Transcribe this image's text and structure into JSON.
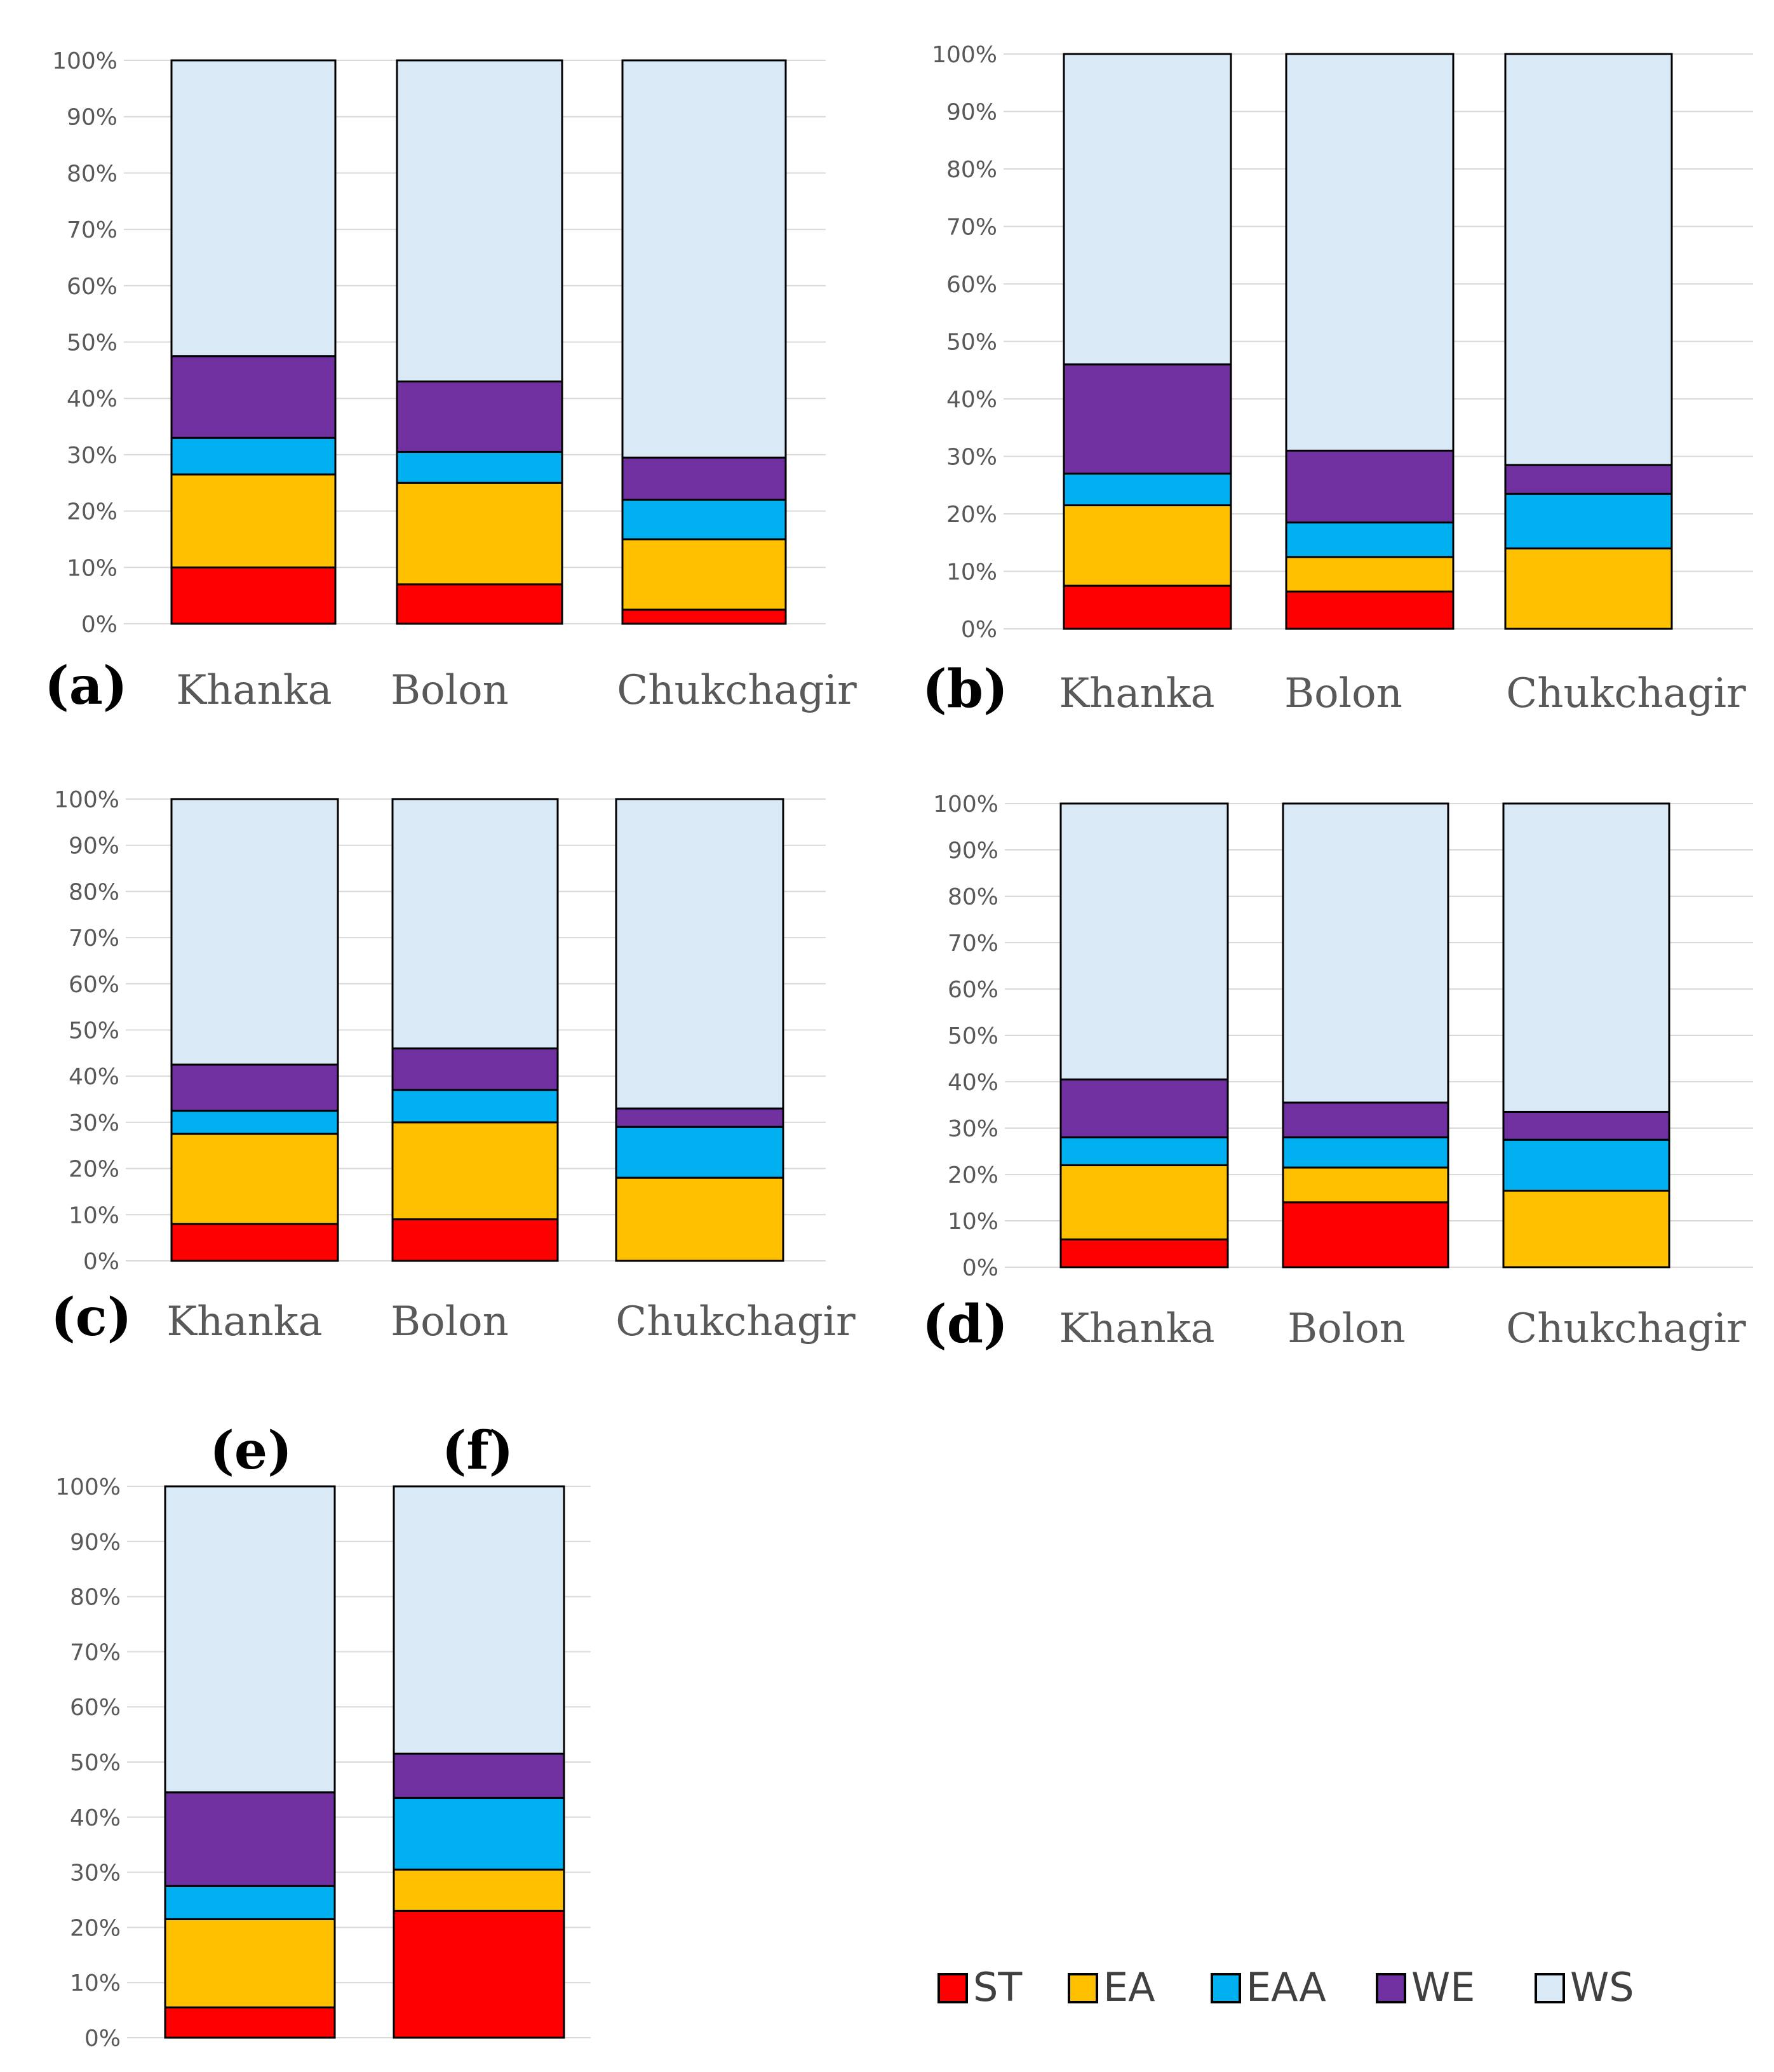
{
  "colors": {
    "ST": "#FF0000",
    "EA": "#FFC000",
    "EAA": "#00B0F0",
    "WE": "#7030A0",
    "WS": "#DAE9F6",
    "stroke": "#000000",
    "grid": "#D9D9D9"
  },
  "legend": [
    {
      "key": "ST",
      "label": "ST"
    },
    {
      "key": "EA",
      "label": "EA"
    },
    {
      "key": "EAA",
      "label": "EAA"
    },
    {
      "key": "WE",
      "label": "WE"
    },
    {
      "key": "WS",
      "label": "WS"
    }
  ],
  "chart_data": [
    {
      "type": "bar",
      "stacked": true,
      "panel": "(a)",
      "categories": [
        "Khanka",
        "Bolon",
        "Chukchagir"
      ],
      "yticks": [
        "0%",
        "10%",
        "20%",
        "30%",
        "40%",
        "50%",
        "60%",
        "70%",
        "80%",
        "90%",
        "100%"
      ],
      "ylim": [
        0,
        100
      ],
      "series": [
        {
          "name": "ST",
          "values": [
            10,
            7,
            2.5
          ]
        },
        {
          "name": "EA",
          "values": [
            16.5,
            18,
            12.5
          ]
        },
        {
          "name": "EAA",
          "values": [
            6.5,
            5.5,
            7
          ]
        },
        {
          "name": "WE",
          "values": [
            14.5,
            12.5,
            7.5
          ]
        },
        {
          "name": "WS",
          "values": [
            52.5,
            57,
            70.5
          ]
        }
      ]
    },
    {
      "type": "bar",
      "stacked": true,
      "panel": "(b)",
      "categories": [
        "Khanka",
        "Bolon",
        "Chukchagir"
      ],
      "yticks": [
        "0%",
        "10%",
        "20%",
        "30%",
        "40%",
        "50%",
        "60%",
        "70%",
        "80%",
        "90%",
        "100%"
      ],
      "ylim": [
        0,
        100
      ],
      "series": [
        {
          "name": "ST",
          "values": [
            7.5,
            6.5,
            0
          ]
        },
        {
          "name": "EA",
          "values": [
            14,
            6,
            14
          ]
        },
        {
          "name": "EAA",
          "values": [
            5.5,
            6,
            9.5
          ]
        },
        {
          "name": "WE",
          "values": [
            19,
            12.5,
            5
          ]
        },
        {
          "name": "WS",
          "values": [
            54,
            69,
            71.5
          ]
        }
      ]
    },
    {
      "type": "bar",
      "stacked": true,
      "panel": "(c)",
      "categories": [
        "Khanka",
        "Bolon",
        "Chukchagir"
      ],
      "yticks": [
        "0%",
        "10%",
        "20%",
        "30%",
        "40%",
        "50%",
        "60%",
        "70%",
        "80%",
        "90%",
        "100%"
      ],
      "ylim": [
        0,
        100
      ],
      "series": [
        {
          "name": "ST",
          "values": [
            8,
            9,
            0
          ]
        },
        {
          "name": "EA",
          "values": [
            19.5,
            21,
            18
          ]
        },
        {
          "name": "EAA",
          "values": [
            5,
            7,
            11
          ]
        },
        {
          "name": "WE",
          "values": [
            10,
            9,
            4
          ]
        },
        {
          "name": "WS",
          "values": [
            57.5,
            54,
            67
          ]
        }
      ]
    },
    {
      "type": "bar",
      "stacked": true,
      "panel": "(d)",
      "categories": [
        "Khanka",
        "Bolon",
        "Chukchagir"
      ],
      "yticks": [
        "0%",
        "10%",
        "20%",
        "30%",
        "40%",
        "50%",
        "60%",
        "70%",
        "80%",
        "90%",
        "100%"
      ],
      "ylim": [
        0,
        100
      ],
      "series": [
        {
          "name": "ST",
          "values": [
            6,
            14,
            0
          ]
        },
        {
          "name": "EA",
          "values": [
            16,
            7.5,
            16.5
          ]
        },
        {
          "name": "EAA",
          "values": [
            6,
            6.5,
            11
          ]
        },
        {
          "name": "WE",
          "values": [
            12.5,
            7.5,
            6
          ]
        },
        {
          "name": "WS",
          "values": [
            59.5,
            64.5,
            66.5
          ]
        }
      ]
    },
    {
      "type": "bar",
      "stacked": true,
      "panel": "(e)(f)",
      "categories": [
        "(e)",
        "(f)"
      ],
      "yticks": [
        "0%",
        "10%",
        "20%",
        "30%",
        "40%",
        "50%",
        "60%",
        "70%",
        "80%",
        "90%",
        "100%"
      ],
      "ylim": [
        0,
        100
      ],
      "series": [
        {
          "name": "ST",
          "values": [
            5.5,
            23
          ]
        },
        {
          "name": "EA",
          "values": [
            16,
            7.5
          ]
        },
        {
          "name": "EAA",
          "values": [
            6,
            13
          ]
        },
        {
          "name": "WE",
          "values": [
            17,
            8
          ]
        },
        {
          "name": "WS",
          "values": [
            55.5,
            48.5
          ]
        }
      ]
    }
  ]
}
